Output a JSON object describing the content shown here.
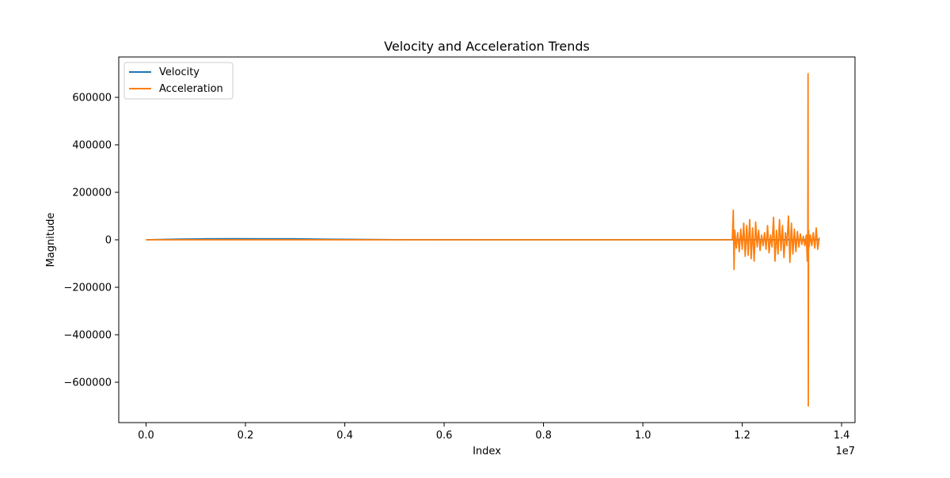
{
  "chart_data": {
    "type": "line",
    "title": "Velocity and Acceleration Trends",
    "xlabel": "Index",
    "ylabel": "Magnitude",
    "x_offset_label": "1e7",
    "xlim": [
      -550000,
      14270000
    ],
    "ylim": [
      -770000,
      770000
    ],
    "x_scale": 10000000,
    "xticks": [
      0,
      2000000,
      4000000,
      6000000,
      8000000,
      10000000,
      12000000,
      14000000
    ],
    "xtick_labels": [
      "0.0",
      "0.2",
      "0.4",
      "0.6",
      "0.8",
      "1.0",
      "1.2",
      "1.4"
    ],
    "yticks": [
      -600000,
      -400000,
      -200000,
      0,
      200000,
      400000,
      600000
    ],
    "ytick_labels": [
      "−600000",
      "−400000",
      "−200000",
      "0",
      "200000",
      "400000",
      "600000"
    ],
    "grid": false,
    "legend_position": "upper left",
    "series": [
      {
        "name": "Velocity",
        "color": "#1f77b4",
        "x": [
          0,
          700000,
          1200000,
          1800000,
          2400000,
          3000000,
          3600000,
          4200000,
          5000000,
          7000000,
          9000000,
          11000000,
          11820000,
          12500000,
          13000000,
          13330000,
          13560000
        ],
        "y": [
          0,
          3000,
          4000,
          4500,
          4200,
          4000,
          2500,
          1500,
          500,
          0,
          0,
          0,
          0,
          0,
          0,
          0,
          0
        ]
      },
      {
        "name": "Acceleration",
        "color": "#ff7f0e",
        "x": [
          0,
          2000000,
          5000000,
          8000000,
          11000000,
          11800000,
          11820000,
          11835000,
          11850000,
          11880000,
          11910000,
          11940000,
          11970000,
          12000000,
          12030000,
          12060000,
          12090000,
          12120000,
          12150000,
          12180000,
          12210000,
          12240000,
          12270000,
          12300000,
          12330000,
          12360000,
          12390000,
          12420000,
          12450000,
          12480000,
          12510000,
          12540000,
          12570000,
          12600000,
          12630000,
          12660000,
          12690000,
          12720000,
          12750000,
          12780000,
          12810000,
          12840000,
          12870000,
          12900000,
          12930000,
          12960000,
          12990000,
          13020000,
          13050000,
          13080000,
          13110000,
          13140000,
          13170000,
          13200000,
          13230000,
          13260000,
          13290000,
          13310000,
          13320000,
          13325000,
          13330000,
          13335000,
          13345000,
          13370000,
          13400000,
          13430000,
          13460000,
          13490000,
          13520000,
          13550000
        ],
        "y": [
          0,
          0,
          0,
          0,
          0,
          0,
          125000,
          -125000,
          40000,
          -35000,
          30000,
          -50000,
          45000,
          -40000,
          70000,
          -70000,
          60000,
          -65000,
          85000,
          -80000,
          50000,
          -90000,
          75000,
          -30000,
          40000,
          -45000,
          20000,
          -25000,
          30000,
          -40000,
          60000,
          -55000,
          20000,
          -30000,
          95000,
          -90000,
          40000,
          -60000,
          85000,
          -45000,
          60000,
          -75000,
          30000,
          -25000,
          100000,
          -95000,
          70000,
          -60000,
          45000,
          -50000,
          35000,
          -30000,
          25000,
          -20000,
          15000,
          -25000,
          20000,
          -90000,
          50000,
          700000,
          -700000,
          40000,
          -30000,
          20000,
          -25000,
          30000,
          -35000,
          50000,
          -40000,
          10000
        ]
      }
    ]
  }
}
